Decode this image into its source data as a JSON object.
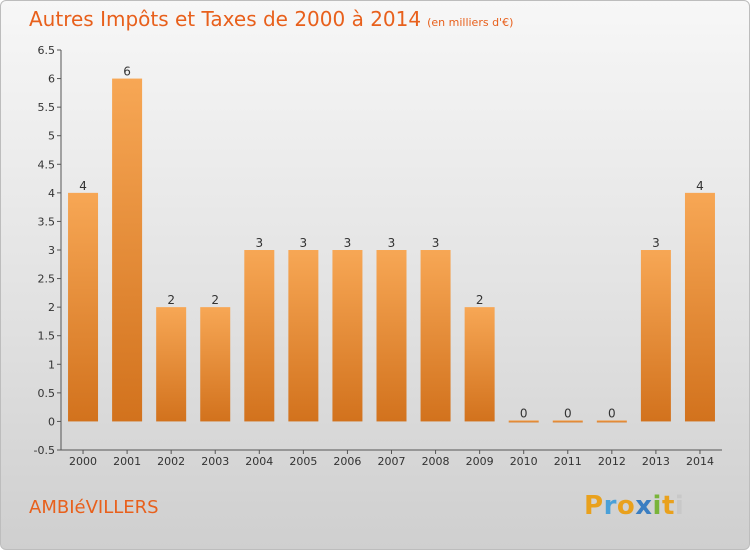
{
  "header": {
    "title": "Autres Impôts et Taxes de 2000 à 2014",
    "subtitle": "(en milliers d'€)"
  },
  "footer": {
    "city": "AMBIéVILLERS",
    "logo_letters": [
      "P",
      "r",
      "o",
      "x",
      "i",
      "t",
      "i"
    ]
  },
  "colors": {
    "title": "#e8601c",
    "bar_top": "#f7a755",
    "bar_bottom": "#d2721d"
  },
  "chart_data": {
    "type": "bar",
    "categories": [
      "2000",
      "2001",
      "2002",
      "2003",
      "2004",
      "2005",
      "2006",
      "2007",
      "2008",
      "2009",
      "2010",
      "2011",
      "2012",
      "2013",
      "2014"
    ],
    "values": [
      4,
      6,
      2,
      2,
      3,
      3,
      3,
      3,
      3,
      2,
      0,
      0,
      0,
      3,
      4
    ],
    "data_labels": [
      "4",
      "6",
      "2",
      "2",
      "3",
      "3",
      "3",
      "3",
      "3",
      "2",
      "0",
      "0",
      "0",
      "3",
      "4"
    ],
    "y_ticks": [
      "6.5",
      "6",
      "5.5",
      "5",
      "4.5",
      "4",
      "3.5",
      "3",
      "2.5",
      "2",
      "1.5",
      "1",
      "0.5",
      "0",
      "-0.5"
    ],
    "ylim": [
      -0.5,
      6.5
    ],
    "grid": false,
    "legend": "none"
  }
}
